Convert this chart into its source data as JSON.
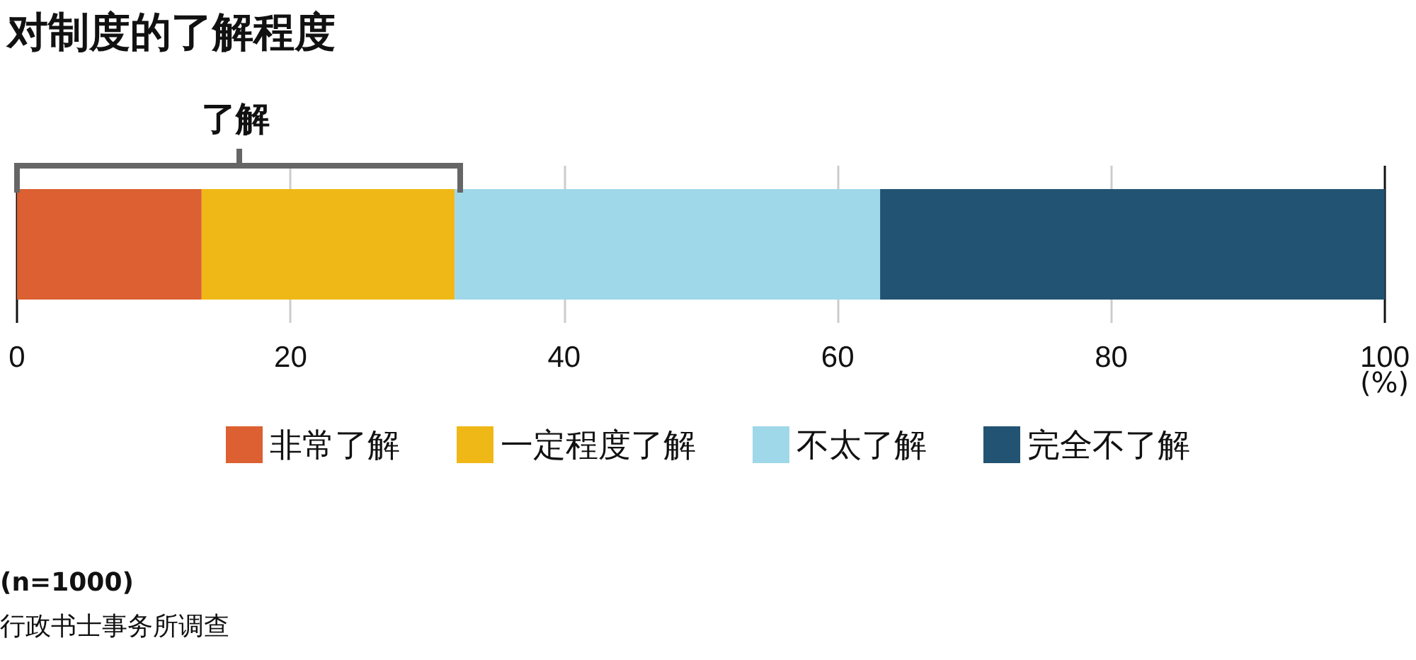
{
  "chart_data": {
    "type": "bar",
    "orientation": "horizontal",
    "stacked": true,
    "title": "对制度的了解程度",
    "xlabel": "(%)",
    "categories": [
      null
    ],
    "series": [
      {
        "name": "非常了解",
        "color": "#dc6032",
        "values": [
          13.5
        ]
      },
      {
        "name": "一定程度了解",
        "color": "#efb817",
        "values": [
          18.5
        ]
      },
      {
        "name": "不太了解",
        "color": "#9fd8e8",
        "values": [
          31.1
        ]
      },
      {
        "name": "完全不了解",
        "color": "#235373",
        "values": [
          36.9
        ]
      }
    ],
    "xlim": [
      0,
      100
    ],
    "xticks": [
      0,
      20,
      40,
      60,
      80,
      100
    ],
    "grid": "x",
    "legend": "bottom",
    "annotations": [
      "了解",
      "(n=1000)",
      "行政书士事务所调查"
    ]
  }
}
